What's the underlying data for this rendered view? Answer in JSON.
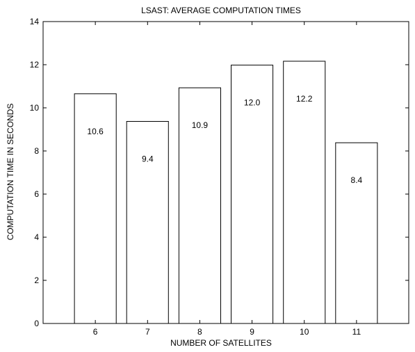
{
  "chart_data": {
    "type": "bar",
    "title": "LSAST: AVERAGE COMPUTATION TIMES",
    "xlabel": "NUMBER OF SATELLITES",
    "ylabel": "COMPUTATION TIME IN SECONDS",
    "categories": [
      "6",
      "7",
      "8",
      "9",
      "10",
      "11"
    ],
    "values": [
      10.65,
      9.37,
      10.93,
      11.98,
      12.16,
      8.38
    ],
    "data_labels": [
      "10.6",
      "9.4",
      "10.9",
      "12.0",
      "12.2",
      "8.4"
    ],
    "ylim": [
      0,
      14
    ],
    "yticks": [
      0,
      2,
      4,
      6,
      8,
      10,
      12,
      14
    ],
    "xlim": [
      5,
      12
    ],
    "grid": false,
    "colors": {
      "bar_fill": "#ffffff",
      "bar_stroke": "#000000",
      "axes": "#000000"
    }
  }
}
